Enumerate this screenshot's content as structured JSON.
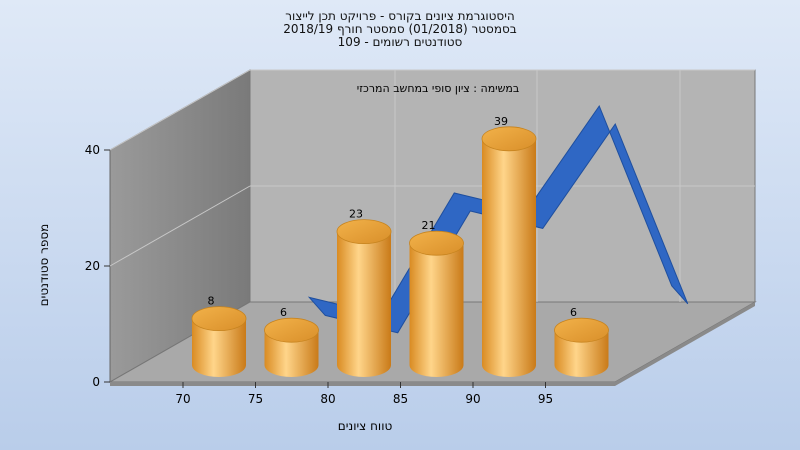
{
  "chart_title": {
    "line1": "היסטוגרמת ציונים בקורס - פרויקט תכן לייצור",
    "line2": "בסמסטר  (01/2018)  סמסטר חורף 2018/19",
    "line3": "סטודנטים רשומים - 109"
  },
  "chart_data": {
    "type": "bar",
    "subtitle": "במשימה : ציון סופי במחשב המרכזי",
    "xlabel": "טווח ציונים",
    "ylabel": "מספר סטודנטים",
    "x_ticks": [
      "70",
      "75",
      "80",
      "85",
      "90",
      "95"
    ],
    "y_ticks": [
      0,
      20,
      40
    ],
    "ylim": [
      0,
      40
    ],
    "bars": [
      {
        "x": 70,
        "value": 8
      },
      {
        "x": 75,
        "value": 6
      },
      {
        "x": 80,
        "value": 23
      },
      {
        "x": 85,
        "value": 21
      },
      {
        "x": 90,
        "value": 39
      },
      {
        "x": 95,
        "value": 6
      }
    ],
    "line_series": {
      "x": [
        72.5,
        77.5,
        82.5,
        87.5,
        92.5,
        97.5
      ],
      "y": [
        12,
        9,
        30,
        27,
        45,
        14
      ]
    },
    "bar_color": "#e8a23c",
    "line_color": "#2f67c4",
    "grid": true
  }
}
